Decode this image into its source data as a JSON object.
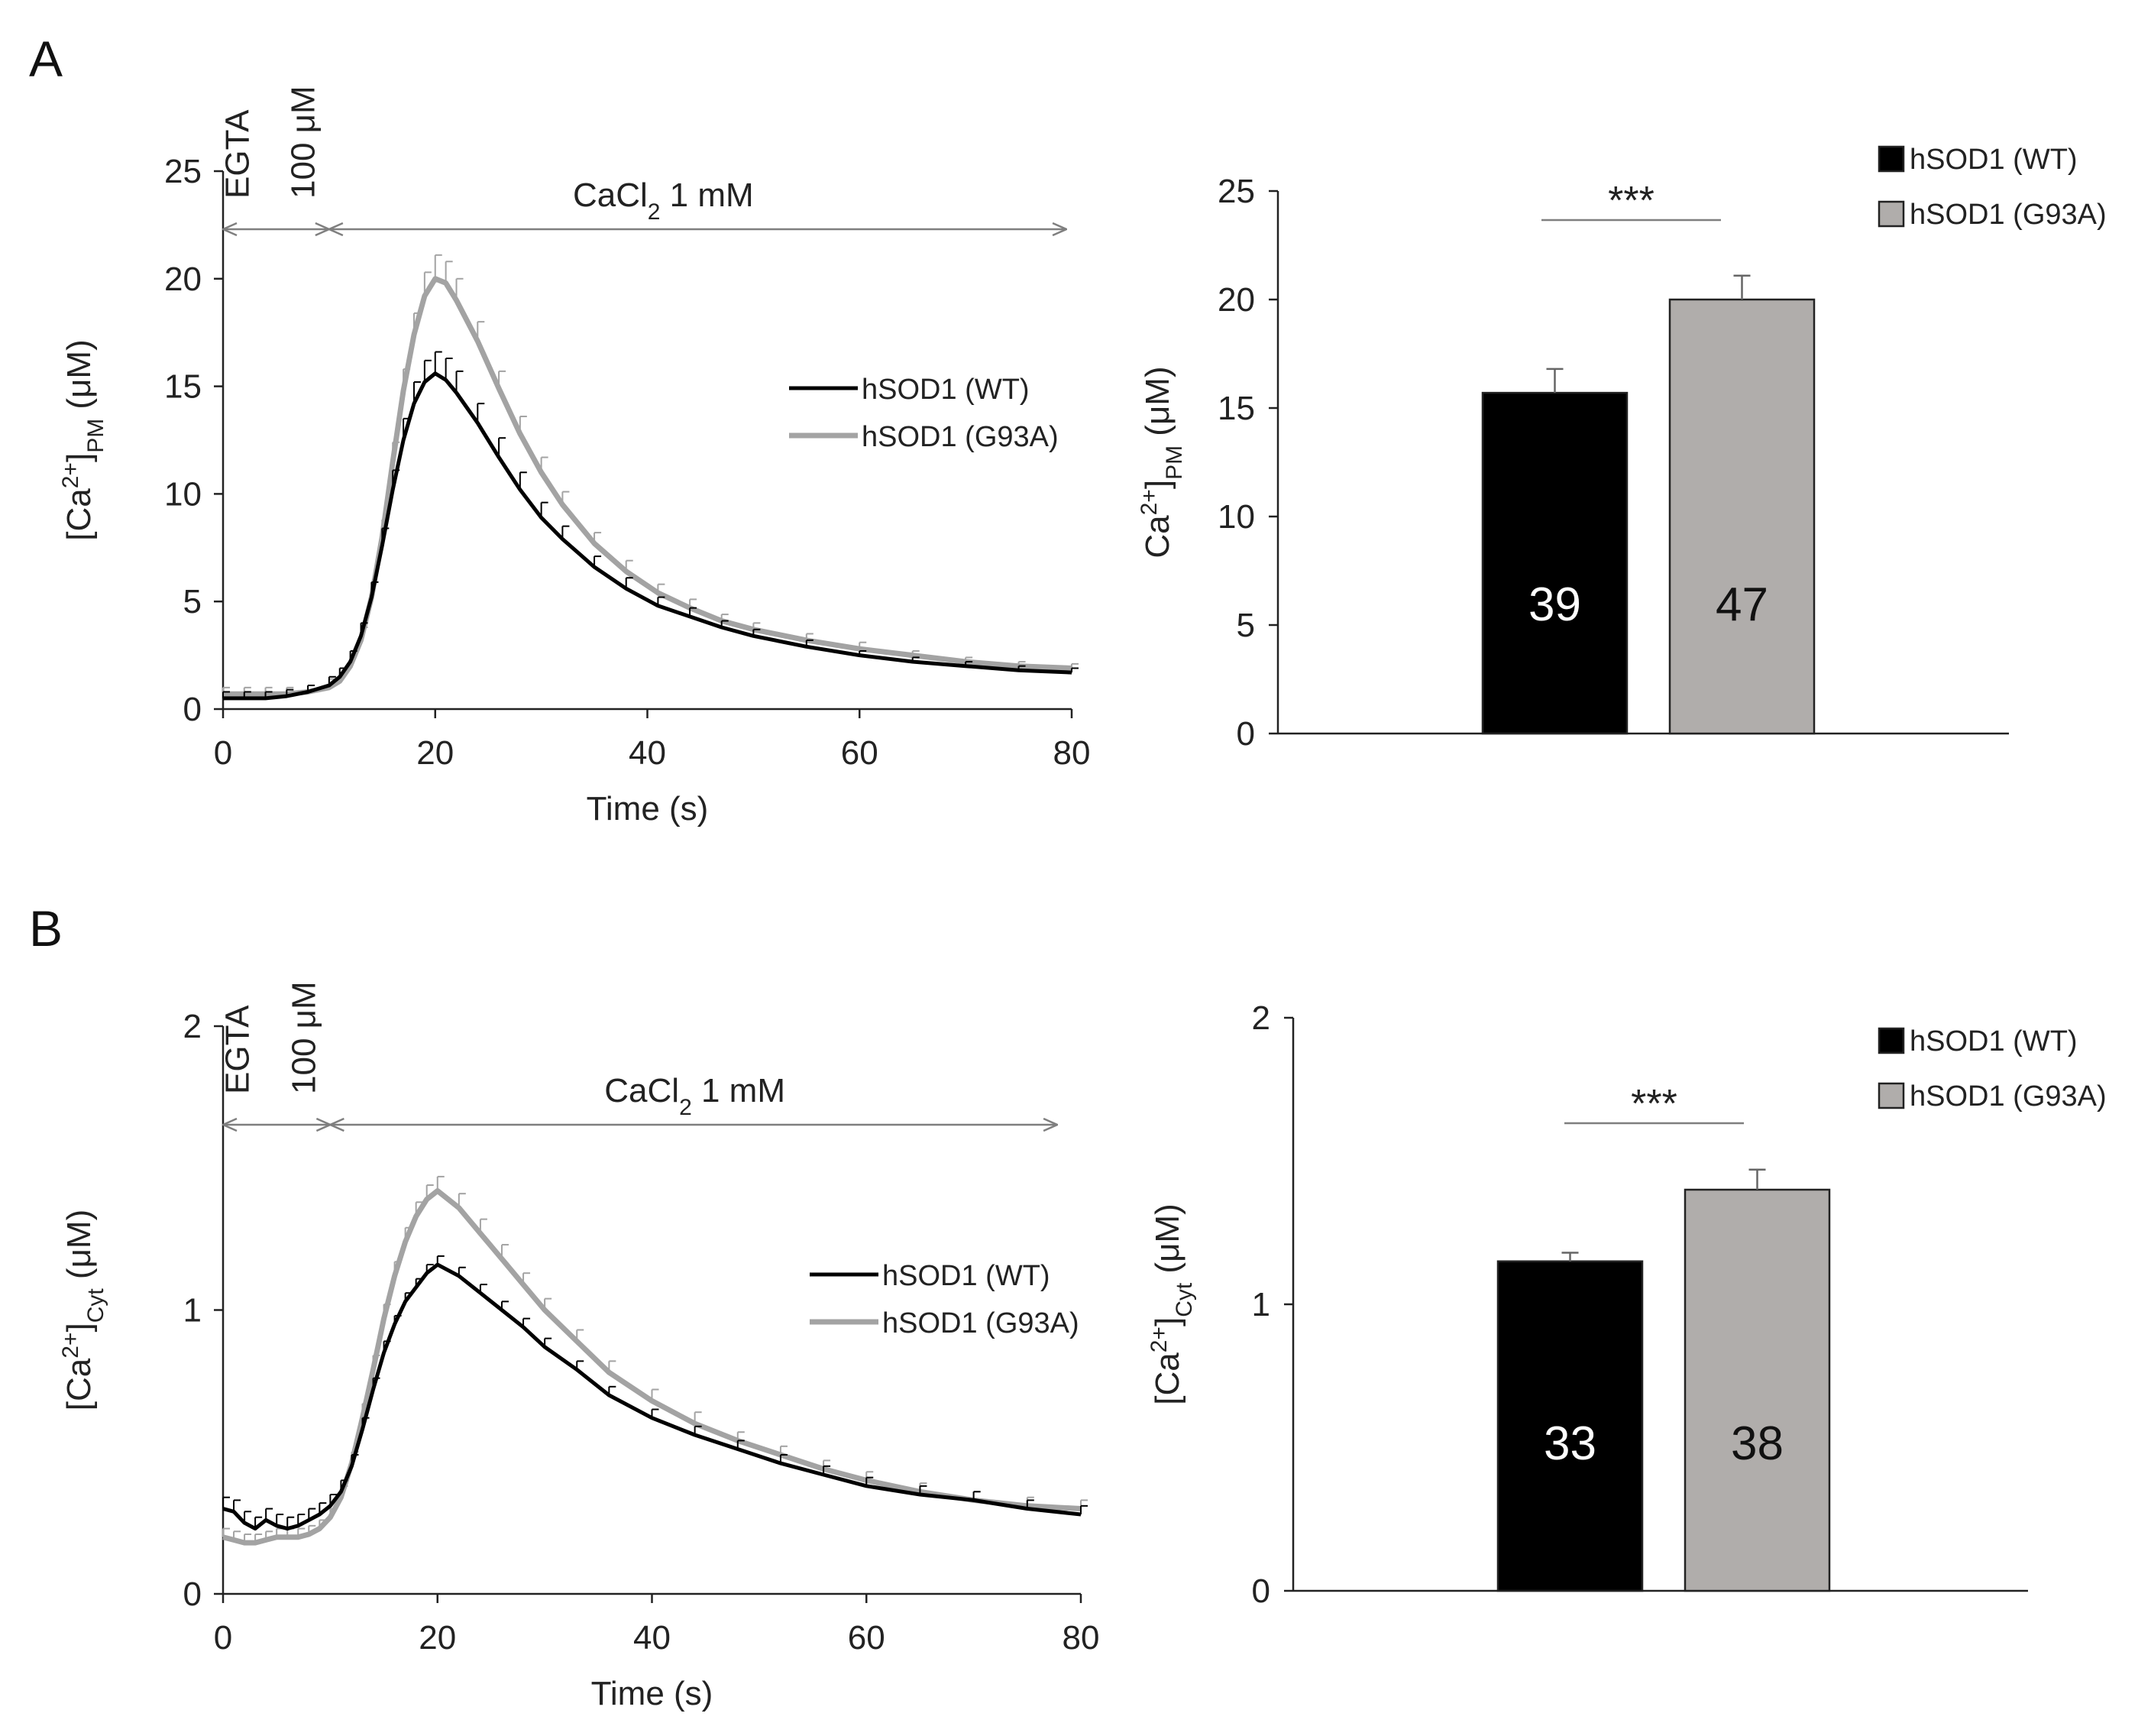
{
  "colors": {
    "wt": "#000000",
    "g93a": "#a3a3a3",
    "axis": "#222222",
    "annot": "#7f7f7f",
    "barG93A": "#b0adab"
  },
  "panels": [
    {
      "letter": "A",
      "annotation": {
        "egta_line1": "EGTA",
        "egta_line2": "100 μM",
        "cacl_main": "CaCl",
        "cacl_sub": "2",
        "cacl_rest": " 1 mM"
      }
    },
    {
      "letter": "B",
      "annotation": {
        "egta_line1": "EGTA",
        "egta_line2": "100 μM",
        "cacl_main": "CaCl",
        "cacl_sub": "2",
        "cacl_rest": " 1 mM"
      }
    }
  ],
  "chart_data": [
    {
      "id": "A-trace",
      "type": "line",
      "title": "",
      "xlabel": "Time (s)",
      "ylabel": {
        "prefix": "[Ca",
        "sup": "2+",
        "mid": "]",
        "sub": "PM",
        "suffix": " (μM)"
      },
      "xlim": [
        0,
        80
      ],
      "ylim": [
        0,
        25
      ],
      "xticks": [
        "0",
        "20",
        "40",
        "60",
        "80"
      ],
      "yticks": [
        "0",
        "5",
        "10",
        "15",
        "20",
        "25"
      ],
      "legend": {
        "position": "right",
        "entries": [
          "hSOD1 (WT)",
          "hSOD1 (G93A)"
        ]
      },
      "series": [
        {
          "name": "hSOD1 (WT)",
          "color": "#000000",
          "x": [
            0,
            2,
            4,
            6,
            8,
            10,
            11,
            12,
            13,
            14,
            15,
            16,
            17,
            18,
            19,
            20,
            21,
            22,
            24,
            26,
            28,
            30,
            32,
            35,
            38,
            41,
            44,
            47,
            50,
            55,
            60,
            65,
            70,
            75,
            80
          ],
          "y": [
            0.5,
            0.5,
            0.5,
            0.6,
            0.8,
            1.1,
            1.5,
            2.2,
            3.4,
            5.2,
            7.6,
            10.2,
            12.5,
            14.2,
            15.2,
            15.6,
            15.3,
            14.7,
            13.3,
            11.7,
            10.2,
            8.9,
            7.9,
            6.6,
            5.6,
            4.8,
            4.3,
            3.8,
            3.4,
            2.9,
            2.5,
            2.2,
            2.0,
            1.8,
            1.7
          ],
          "err": [
            0.3,
            0.3,
            0.3,
            0.3,
            0.3,
            0.4,
            0.4,
            0.5,
            0.6,
            0.7,
            0.8,
            0.9,
            1.0,
            1.0,
            1.0,
            1.0,
            1.0,
            1.0,
            0.9,
            0.9,
            0.8,
            0.7,
            0.6,
            0.5,
            0.5,
            0.4,
            0.4,
            0.3,
            0.3,
            0.3,
            0.2,
            0.2,
            0.2,
            0.2,
            0.2
          ]
        },
        {
          "name": "hSOD1 (G93A)",
          "color": "#a3a3a3",
          "x": [
            0,
            2,
            4,
            6,
            8,
            10,
            11,
            12,
            13,
            14,
            15,
            16,
            17,
            18,
            19,
            20,
            21,
            22,
            24,
            26,
            28,
            30,
            32,
            35,
            38,
            41,
            44,
            47,
            50,
            55,
            60,
            65,
            70,
            75,
            80
          ],
          "y": [
            0.7,
            0.7,
            0.7,
            0.7,
            0.8,
            1.0,
            1.3,
            2.0,
            3.2,
            5.2,
            8.0,
            11.5,
            14.8,
            17.4,
            19.2,
            20.0,
            19.8,
            19.0,
            17.1,
            14.9,
            12.8,
            11.0,
            9.5,
            7.7,
            6.4,
            5.4,
            4.7,
            4.1,
            3.7,
            3.2,
            2.8,
            2.5,
            2.2,
            2.0,
            1.9
          ],
          "err": [
            0.3,
            0.3,
            0.3,
            0.3,
            0.3,
            0.4,
            0.4,
            0.5,
            0.6,
            0.7,
            0.8,
            0.9,
            1.0,
            1.0,
            1.1,
            1.1,
            1.0,
            1.0,
            0.9,
            0.8,
            0.8,
            0.7,
            0.6,
            0.5,
            0.5,
            0.4,
            0.4,
            0.3,
            0.3,
            0.3,
            0.3,
            0.2,
            0.2,
            0.2,
            0.2
          ]
        }
      ]
    },
    {
      "id": "A-bar",
      "type": "bar",
      "ylabel": {
        "prefix": "Ca",
        "sup": "2+",
        "mid": "]",
        "sub": "PM",
        "suffix": " (μM)"
      },
      "ylim": [
        0,
        25
      ],
      "yticks": [
        "0",
        "5",
        "10",
        "15",
        "20",
        "25"
      ],
      "categories": [
        "hSOD1 (WT)",
        "hSOD1 (G93A)"
      ],
      "values": [
        15.7,
        20.0
      ],
      "errors": [
        1.1,
        1.1
      ],
      "bar_labels": [
        "39",
        "47"
      ],
      "bar_colors": [
        "#000000",
        "#b0adab"
      ],
      "significance": "***",
      "legend": {
        "position": "top-right",
        "entries": [
          "hSOD1 (WT)",
          "hSOD1 (G93A)"
        ]
      }
    },
    {
      "id": "B-trace",
      "type": "line",
      "xlabel": "Time (s)",
      "ylabel": {
        "prefix": "[Ca",
        "sup": "2+",
        "mid": "]",
        "sub": "Cyt",
        "suffix": " (μM)"
      },
      "xlim": [
        0,
        80
      ],
      "ylim": [
        0,
        2
      ],
      "xticks": [
        "0",
        "20",
        "40",
        "60",
        "80"
      ],
      "yticks": [
        "0",
        "1",
        "2"
      ],
      "legend": {
        "position": "right",
        "entries": [
          "hSOD1 (WT)",
          "hSOD1 (G93A)"
        ]
      },
      "series": [
        {
          "name": "hSOD1 (WT)",
          "color": "#000000",
          "x": [
            0,
            1,
            2,
            3,
            4,
            5,
            6,
            7,
            8,
            9,
            10,
            11,
            12,
            13,
            14,
            15,
            16,
            17,
            18,
            19,
            20,
            22,
            24,
            26,
            28,
            30,
            33,
            36,
            40,
            44,
            48,
            52,
            56,
            60,
            65,
            70,
            75,
            80
          ],
          "y": [
            0.3,
            0.29,
            0.25,
            0.23,
            0.26,
            0.24,
            0.23,
            0.24,
            0.26,
            0.28,
            0.31,
            0.36,
            0.45,
            0.58,
            0.72,
            0.85,
            0.95,
            1.03,
            1.08,
            1.13,
            1.16,
            1.12,
            1.06,
            1.0,
            0.94,
            0.87,
            0.79,
            0.7,
            0.62,
            0.56,
            0.51,
            0.46,
            0.42,
            0.38,
            0.35,
            0.33,
            0.3,
            0.28
          ],
          "err": [
            0.04,
            0.04,
            0.04,
            0.04,
            0.04,
            0.04,
            0.04,
            0.04,
            0.04,
            0.04,
            0.04,
            0.04,
            0.04,
            0.04,
            0.04,
            0.04,
            0.03,
            0.03,
            0.03,
            0.03,
            0.03,
            0.03,
            0.03,
            0.03,
            0.03,
            0.03,
            0.03,
            0.03,
            0.03,
            0.03,
            0.03,
            0.03,
            0.03,
            0.03,
            0.03,
            0.03,
            0.03,
            0.03
          ]
        },
        {
          "name": "hSOD1 (G93A)",
          "color": "#a3a3a3",
          "x": [
            0,
            1,
            2,
            3,
            4,
            5,
            6,
            7,
            8,
            9,
            10,
            11,
            12,
            13,
            14,
            15,
            16,
            17,
            18,
            19,
            20,
            22,
            24,
            26,
            28,
            30,
            33,
            36,
            40,
            44,
            48,
            52,
            56,
            60,
            65,
            70,
            75,
            80
          ],
          "y": [
            0.2,
            0.19,
            0.18,
            0.18,
            0.19,
            0.2,
            0.2,
            0.2,
            0.21,
            0.23,
            0.27,
            0.34,
            0.46,
            0.62,
            0.79,
            0.97,
            1.12,
            1.24,
            1.33,
            1.39,
            1.42,
            1.36,
            1.27,
            1.18,
            1.09,
            1.0,
            0.89,
            0.78,
            0.68,
            0.6,
            0.54,
            0.49,
            0.44,
            0.4,
            0.36,
            0.33,
            0.31,
            0.3
          ],
          "err": [
            0.03,
            0.03,
            0.03,
            0.03,
            0.03,
            0.03,
            0.03,
            0.03,
            0.03,
            0.03,
            0.03,
            0.04,
            0.04,
            0.05,
            0.05,
            0.05,
            0.05,
            0.05,
            0.05,
            0.05,
            0.05,
            0.05,
            0.05,
            0.05,
            0.04,
            0.04,
            0.04,
            0.04,
            0.04,
            0.04,
            0.03,
            0.03,
            0.03,
            0.03,
            0.03,
            0.03,
            0.03,
            0.03
          ]
        }
      ]
    },
    {
      "id": "B-bar",
      "type": "bar",
      "ylabel": {
        "prefix": "[Ca",
        "sup": "2+",
        "mid": "]",
        "sub": "Cyt",
        "suffix": " (μM)"
      },
      "ylim": [
        0,
        2
      ],
      "yticks": [
        "0",
        "1",
        "2"
      ],
      "categories": [
        "hSOD1 (WT)",
        "hSOD1 (G93A)"
      ],
      "values": [
        1.15,
        1.4
      ],
      "errors": [
        0.03,
        0.07
      ],
      "bar_labels": [
        "33",
        "38"
      ],
      "bar_colors": [
        "#000000",
        "#b0adab"
      ],
      "significance": "***",
      "legend": {
        "position": "top-right",
        "entries": [
          "hSOD1 (WT)",
          "hSOD1 (G93A)"
        ]
      }
    }
  ]
}
